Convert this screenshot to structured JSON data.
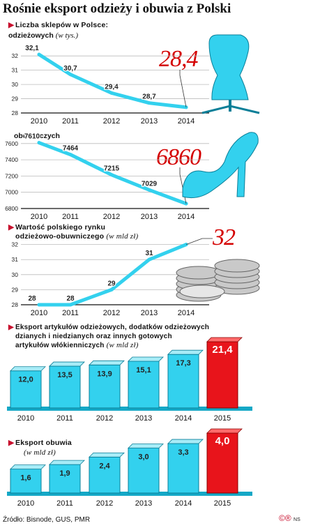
{
  "title": "Rośnie eksport odzieży i obuwia z Polski",
  "colors": {
    "accent": "#33d1ee",
    "accent_dark": "#15a8c6",
    "red": "#e8141b",
    "grid": "#bbbbbb"
  },
  "sections": {
    "stores": {
      "label": "Liczba sklepów w Polsce:"
    },
    "market": {
      "label_line1": "Wartość polskiego rynku",
      "label_line2": "odzieżowo-obuwniczego",
      "unit": "(w mld zł)"
    },
    "export": {
      "label_line1": "Eksport artykułów odzieżowych, dodatków odzieżowych",
      "label_line2": "dzianych i niedzianych oraz innych gotowych",
      "label_line3": "artykułów włókienniczych",
      "unit": "(w mld zł)"
    },
    "shoes": {
      "label": "Eksport obuwia",
      "unit": "(w mld zł)"
    }
  },
  "clothing_stores": {
    "label": "odzieżowych",
    "unit": "(w tys.)",
    "highlight": "28,4"
  },
  "shoe_stores": {
    "label": "obuwniczych",
    "highlight": "6860"
  },
  "market_highlight": "32",
  "icons": [
    "mannequin-icon",
    "high-heel-icon",
    "coins-icon"
  ],
  "chart_data": [
    {
      "type": "line",
      "name": "odzieżowych",
      "x": [
        "2010",
        "2011",
        "2012",
        "2013",
        "2014"
      ],
      "values": [
        32.1,
        30.7,
        29.4,
        28.7,
        28.4
      ],
      "labels": [
        "32,1",
        "30,7",
        "29,4",
        "28,7",
        ""
      ],
      "yticks": [
        "32",
        "31",
        "30",
        "29",
        "28"
      ],
      "ylim": [
        28,
        32.4
      ]
    },
    {
      "type": "line",
      "name": "obuwniczych",
      "x": [
        "2010",
        "2011",
        "2012",
        "2013",
        "2014"
      ],
      "values": [
        7610,
        7464,
        7215,
        7029,
        6860
      ],
      "labels": [
        "7610",
        "7464",
        "7215",
        "7029",
        ""
      ],
      "yticks": [
        "7600",
        "7400",
        "7200",
        "7000",
        "6800"
      ],
      "ylim": [
        6800,
        7650
      ]
    },
    {
      "type": "line",
      "name": "rynek",
      "x": [
        "2010",
        "2011",
        "2012",
        "2013",
        "2014"
      ],
      "values": [
        28,
        28,
        29,
        31,
        32
      ],
      "labels": [
        "28",
        "28",
        "29",
        "31",
        ""
      ],
      "yticks": [
        "32",
        "31",
        "30",
        "29",
        "28"
      ],
      "ylim": [
        28,
        32.4
      ]
    },
    {
      "type": "bar",
      "name": "eksport odzieży",
      "categories": [
        "2010",
        "2011",
        "2012",
        "2013",
        "2014",
        "2015"
      ],
      "values": [
        12.0,
        13.5,
        13.9,
        15.1,
        17.3,
        21.4
      ],
      "labels": [
        "12,0",
        "13,5",
        "13,9",
        "15,1",
        "17,3",
        "21,4"
      ],
      "highlight_index": 5
    },
    {
      "type": "bar",
      "name": "eksport obuwia",
      "categories": [
        "2010",
        "2011",
        "2012",
        "2013",
        "2014",
        "2015"
      ],
      "values": [
        1.6,
        1.9,
        2.4,
        3.0,
        3.3,
        4.0
      ],
      "labels": [
        "1,6",
        "1,9",
        "2,4",
        "3,0",
        "3,3",
        "4,0"
      ],
      "highlight_index": 5
    }
  ],
  "source": "Źródło: Bisnode, GUS, PMR",
  "logos": "©®"
}
